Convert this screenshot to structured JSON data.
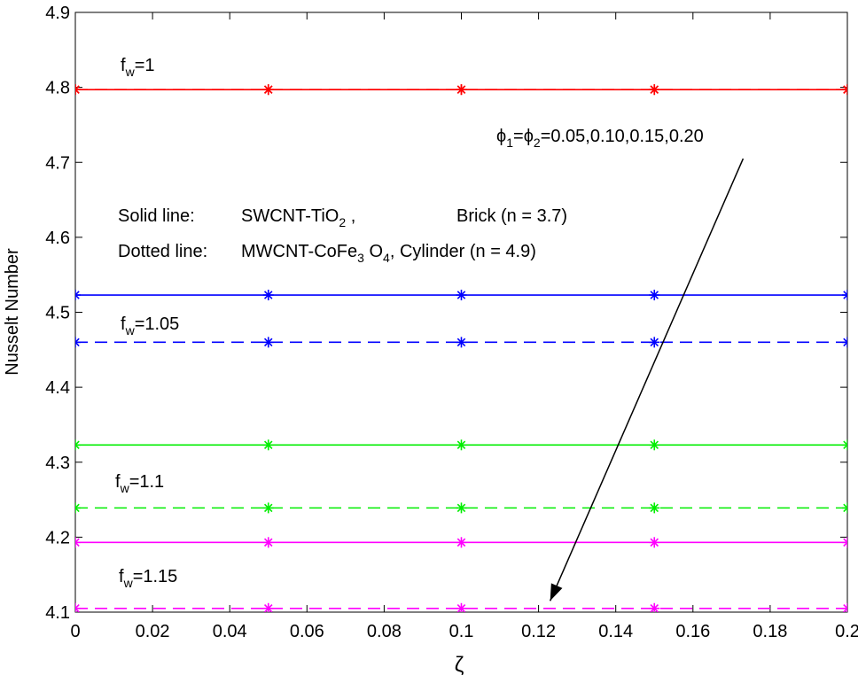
{
  "chart_data": {
    "type": "line",
    "title": "",
    "xlabel": "ζ",
    "ylabel": "Nusselt Number",
    "xlim": [
      0,
      0.2
    ],
    "ylim": [
      4.1,
      4.9
    ],
    "x_ticks": [
      "0",
      "0.02",
      "0.04",
      "0.06",
      "0.08",
      "0.1",
      "0.12",
      "0.14",
      "0.16",
      "0.18",
      "0.2"
    ],
    "y_ticks": [
      "4.1",
      "4.2",
      "4.3",
      "4.4",
      "4.5",
      "4.6",
      "4.7",
      "4.8",
      "4.9"
    ],
    "grid": false,
    "x": [
      0,
      0.05,
      0.1,
      0.15,
      0.2
    ],
    "series": [
      {
        "group": "f_w=1",
        "style": "solid",
        "color": "#ff0000",
        "values": [
          4.797,
          4.797,
          4.797,
          4.797,
          4.797
        ]
      },
      {
        "group": "f_w=1",
        "style": "dashed",
        "color": "#ff0000",
        "values": [
          4.797,
          4.797,
          4.797,
          4.797,
          4.797
        ]
      },
      {
        "group": "f_w=1.05",
        "style": "solid",
        "color": "#0000ff",
        "values": [
          4.523,
          4.523,
          4.523,
          4.523,
          4.523
        ]
      },
      {
        "group": "f_w=1.05",
        "style": "dashed",
        "color": "#0000ff",
        "values": [
          4.46,
          4.46,
          4.46,
          4.46,
          4.46
        ]
      },
      {
        "group": "f_w=1.1",
        "style": "solid",
        "color": "#00ee00",
        "values": [
          4.323,
          4.323,
          4.323,
          4.323,
          4.323
        ]
      },
      {
        "group": "f_w=1.1",
        "style": "dashed",
        "color": "#00ee00",
        "values": [
          4.239,
          4.239,
          4.239,
          4.239,
          4.239
        ]
      },
      {
        "group": "f_w=1.15",
        "style": "solid",
        "color": "#ff00ff",
        "values": [
          4.193,
          4.193,
          4.193,
          4.193,
          4.193
        ]
      },
      {
        "group": "f_w=1.15",
        "style": "dashed",
        "color": "#ff00ff",
        "values": [
          4.105,
          4.105,
          4.105,
          4.105,
          4.105
        ]
      }
    ],
    "labels": {
      "fw1": {
        "base": "f",
        "sub": "w",
        "rest": "=1"
      },
      "fw105": {
        "base": "f",
        "sub": "w",
        "rest": "=1.05"
      },
      "fw11": {
        "base": "f",
        "sub": "w",
        "rest": "=1.1"
      },
      "fw115": {
        "base": "f",
        "sub": "w",
        "rest": "=1.15"
      }
    },
    "phi_annotation": {
      "phi": "ϕ",
      "sub1": "1",
      "eq": "=",
      "sub2": "2",
      "values": "=0.05,0.10,0.15,0.20",
      "arrow_from": [
        0.173,
        4.705
      ],
      "arrow_to": [
        0.123,
        4.115
      ]
    },
    "legend_text": {
      "solid_label": "Solid line:",
      "solid_material_a": "SWCNT-TiO",
      "solid_material_sub": "2",
      "solid_material_b": " ,",
      "solid_shape": "Brick (n = 3.7)",
      "dotted_label": "Dotted line:",
      "dotted_material_a": "MWCNT-CoFe",
      "dotted_material_sub1": "3",
      "dotted_material_b": " O",
      "dotted_material_sub2": "4",
      "dotted_shape": ", Cylinder (n = 4.9)"
    }
  }
}
